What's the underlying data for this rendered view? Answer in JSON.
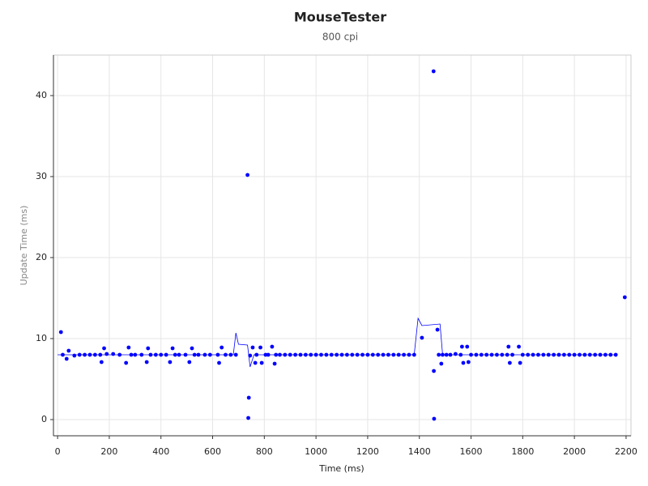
{
  "chart_data": {
    "type": "scatter",
    "title": "MouseTester",
    "subtitle": "800 cpi",
    "x_label": "Time (ms)",
    "y_label": "Update Time (ms)",
    "xlim": [
      -16,
      2219
    ],
    "ylim": [
      -2,
      45
    ],
    "xticks": [
      0,
      200,
      400,
      600,
      800,
      1000,
      1200,
      1400,
      1600,
      1800,
      2000,
      2200
    ],
    "yticks": [
      0,
      10,
      20,
      30,
      40
    ],
    "grid": true,
    "series": [
      {
        "mode": "markers",
        "color": "#0000ff",
        "x": [
          13,
          20,
          35,
          43,
          65,
          85,
          105,
          125,
          145,
          165,
          170,
          180,
          190,
          215,
          240,
          265,
          275,
          285,
          300,
          325,
          345,
          350,
          360,
          380,
          400,
          420,
          435,
          445,
          455,
          470,
          495,
          510,
          520,
          530,
          545,
          570,
          590,
          620,
          625,
          635,
          650,
          670,
          690,
          735,
          738,
          740,
          745,
          755,
          765,
          770,
          785,
          790,
          805,
          815,
          830,
          840,
          845,
          860,
          880,
          900,
          920,
          940,
          960,
          980,
          1000,
          1020,
          1040,
          1060,
          1080,
          1100,
          1120,
          1140,
          1160,
          1180,
          1200,
          1220,
          1240,
          1260,
          1280,
          1300,
          1320,
          1340,
          1360,
          1380,
          1410,
          1455,
          1456,
          1457,
          1470,
          1475,
          1485,
          1490,
          1505,
          1520,
          1540,
          1560,
          1565,
          1570,
          1585,
          1590,
          1600,
          1620,
          1640,
          1660,
          1680,
          1700,
          1720,
          1740,
          1745,
          1750,
          1760,
          1785,
          1790,
          1800,
          1820,
          1840,
          1860,
          1880,
          1900,
          1920,
          1940,
          1960,
          1980,
          2000,
          2020,
          2040,
          2060,
          2080,
          2100,
          2120,
          2140,
          2160,
          2195
        ],
        "values": [
          10.8,
          8,
          7.5,
          8.5,
          7.9,
          8,
          8,
          8,
          8,
          8,
          7.1,
          8.8,
          8.1,
          8.1,
          8,
          7,
          8.9,
          8,
          8,
          8,
          7.1,
          8.8,
          8,
          8,
          8,
          8,
          7.1,
          8.8,
          8,
          8,
          8,
          7.1,
          8.8,
          8,
          8,
          8,
          8,
          8,
          7,
          8.9,
          8,
          8,
          8,
          30.2,
          0.2,
          2.7,
          7.9,
          8.9,
          7,
          8,
          8.9,
          7,
          8,
          8,
          9,
          6.9,
          8,
          8,
          8,
          8,
          8,
          8,
          8,
          8,
          8,
          8,
          8,
          8,
          8,
          8,
          8,
          8,
          8,
          8,
          8,
          8,
          8,
          8,
          8,
          8,
          8,
          8,
          8,
          8,
          10.1,
          43,
          6,
          0.1,
          11.1,
          8,
          6.9,
          8,
          8,
          8,
          8.1,
          8,
          9,
          7,
          9,
          7.1,
          8,
          8,
          8,
          8,
          8,
          8,
          8,
          8,
          9,
          7,
          8,
          9,
          7,
          8,
          8,
          8,
          8,
          8,
          8,
          8,
          8,
          8,
          8,
          8,
          8,
          8,
          8,
          8,
          8,
          8,
          8,
          8,
          15.1
        ]
      },
      {
        "mode": "lines",
        "color": "#0000ff",
        "x": [
          0,
          680,
          690,
          700,
          735,
          745,
          760,
          1380,
          1395,
          1410,
          1480,
          1490,
          2160
        ],
        "values": [
          8,
          8,
          10.7,
          9.3,
          9.2,
          6.5,
          8,
          8,
          12.5,
          11.6,
          11.8,
          8,
          8
        ]
      }
    ]
  }
}
